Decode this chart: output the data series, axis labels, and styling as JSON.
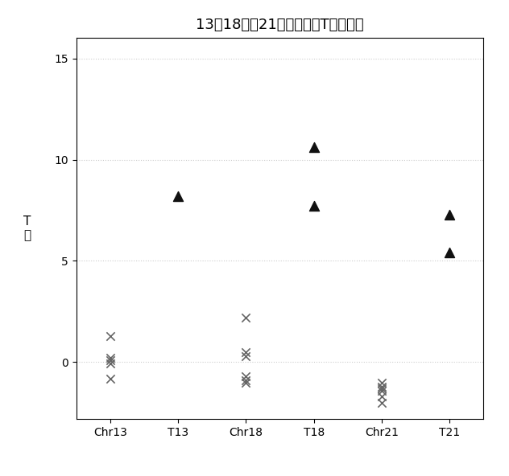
{
  "title": "13、18以及21号染色体的T値统计图",
  "ylabel_line1": "T",
  "ylabel_line2": "値",
  "categories": [
    "Chr13",
    "T13",
    "Chr18",
    "T18",
    "Chr21",
    "T21"
  ],
  "x_positions": [
    1,
    2,
    3,
    4,
    5,
    6
  ],
  "cross_data": {
    "Chr13": [
      1.3,
      0.2,
      0.1,
      -0.05,
      -0.8
    ],
    "T13": [],
    "Chr18": [
      2.2,
      0.5,
      0.3,
      -0.7,
      -0.9,
      -1.0
    ],
    "T18": [],
    "Chr21": [
      -1.0,
      -1.2,
      -1.3,
      -1.4,
      -1.7,
      -2.0
    ],
    "T21": []
  },
  "triangle_data": {
    "Chr13": [],
    "T13": [
      8.2
    ],
    "Chr18": [],
    "T18": [
      10.6,
      7.7
    ],
    "Chr21": [],
    "T21": [
      7.3,
      5.4
    ]
  },
  "ylim": [
    -2.8,
    16
  ],
  "yticks": [
    0,
    5,
    10,
    15
  ],
  "xlim": [
    0.5,
    6.5
  ],
  "background_color": "#ffffff",
  "plot_bg_color": "#ffffff",
  "cross_color": "#666666",
  "triangle_color": "#111111",
  "cross_size": 55,
  "triangle_size": 75,
  "title_fontsize": 13,
  "label_fontsize": 11,
  "tick_fontsize": 10
}
